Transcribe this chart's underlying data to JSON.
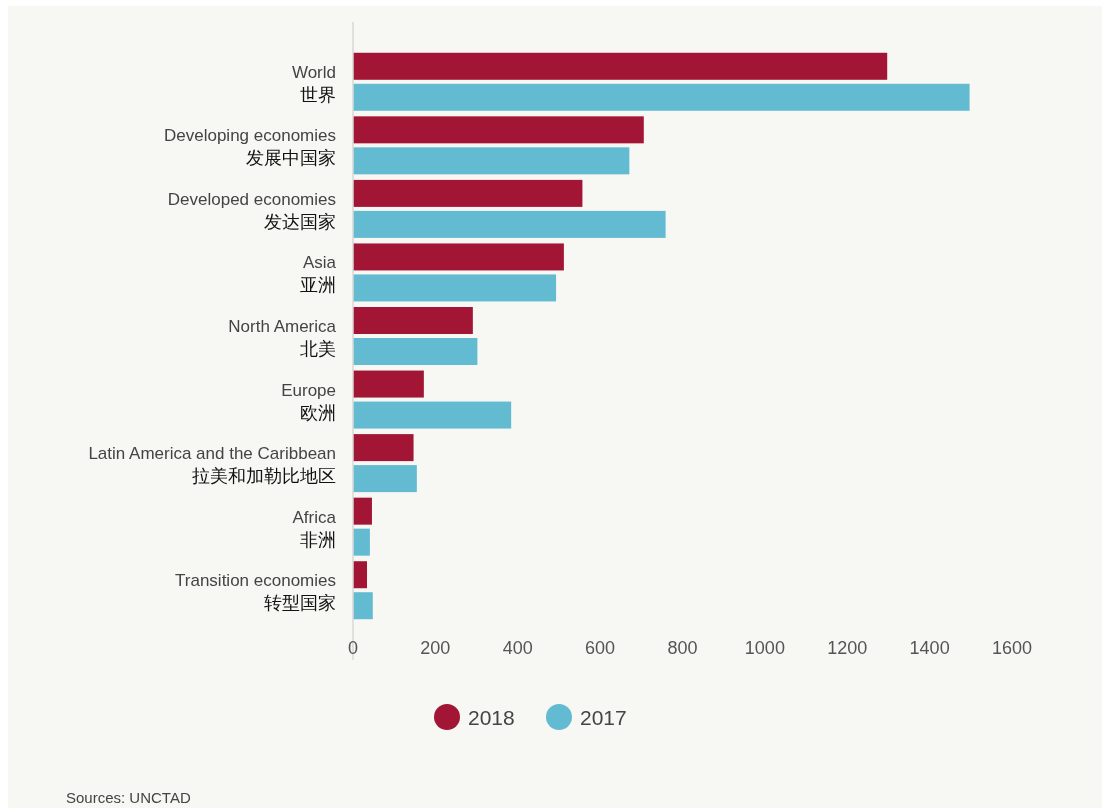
{
  "chart_data": {
    "type": "bar",
    "orientation": "horizontal",
    "categories": [
      "World\n世界",
      "Developing economies\n发展中国家",
      "Developed economies\n发达国家",
      "Asia\n亚洲",
      "North America\n北美",
      "Europe\n欧洲",
      "Latin America and the Caribbean\n拉美和加勒比地区",
      "Africa\n非洲",
      "Transition economies\n转型国家"
    ],
    "series": [
      {
        "name": "2018",
        "color": "#a31535",
        "values": [
          1297,
          706,
          557,
          512,
          291,
          172,
          147,
          46,
          34
        ]
      },
      {
        "name": "2017",
        "color": "#62bbd0",
        "values": [
          1497,
          671,
          759,
          493,
          302,
          384,
          155,
          41,
          48
        ]
      }
    ],
    "xlim": [
      0,
      1600
    ],
    "xticks": [
      0,
      200,
      400,
      600,
      800,
      1000,
      1200,
      1400,
      1600
    ],
    "legend": "bottom",
    "annotations": [
      "Sources: UNCTAD"
    ]
  }
}
